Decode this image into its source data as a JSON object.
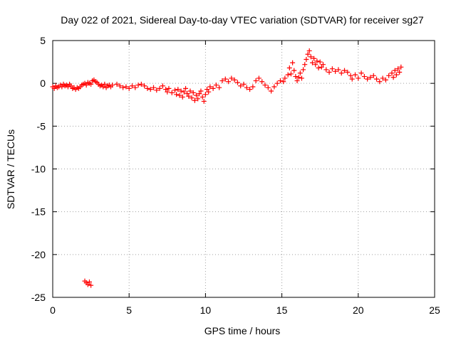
{
  "chart_data": {
    "type": "scatter",
    "title": "Day 022 of 2021, Sidereal Day-to-day VTEC variation (SDTVAR) for receiver sg27",
    "xlabel": "GPS time / hours",
    "ylabel": "SDTVAR / TECUs",
    "xlim": [
      0,
      25
    ],
    "ylim": [
      -25,
      5
    ],
    "grid": true,
    "marker": "+",
    "color": "#ff0000",
    "x_ticks": [
      0,
      5,
      10,
      15,
      20,
      25
    ],
    "x_tick_labels": [
      "0",
      "5",
      "10",
      "15",
      "20",
      "25"
    ],
    "y_ticks": [
      5,
      0,
      -5,
      -10,
      -15,
      -20,
      -25
    ],
    "y_tick_labels": [
      "5",
      "0",
      "-5",
      "-10",
      "-15",
      "-20",
      "-25"
    ],
    "series": [
      {
        "name": "sg27",
        "points": [
          [
            0.0,
            -0.4
          ],
          [
            0.1,
            -0.6
          ],
          [
            0.2,
            -0.3
          ],
          [
            0.3,
            -0.5
          ],
          [
            0.4,
            -0.4
          ],
          [
            0.5,
            -0.2
          ],
          [
            0.6,
            -0.4
          ],
          [
            0.7,
            -0.1
          ],
          [
            0.8,
            -0.3
          ],
          [
            0.9,
            -0.2
          ],
          [
            1.0,
            -0.4
          ],
          [
            1.1,
            -0.1
          ],
          [
            1.2,
            -0.3
          ],
          [
            1.3,
            -0.6
          ],
          [
            1.4,
            -0.5
          ],
          [
            1.5,
            -0.7
          ],
          [
            1.6,
            -0.5
          ],
          [
            1.7,
            -0.6
          ],
          [
            1.8,
            -0.4
          ],
          [
            1.9,
            -0.2
          ],
          [
            2.0,
            -0.1
          ],
          [
            2.1,
            0.0
          ],
          [
            2.2,
            -0.2
          ],
          [
            2.3,
            0.1
          ],
          [
            2.4,
            0.0
          ],
          [
            2.5,
            -0.1
          ],
          [
            2.6,
            0.3
          ],
          [
            2.7,
            0.4
          ],
          [
            2.8,
            0.2
          ],
          [
            2.9,
            0.1
          ],
          [
            3.0,
            -0.1
          ],
          [
            3.1,
            -0.3
          ],
          [
            3.2,
            -0.2
          ],
          [
            3.3,
            -0.4
          ],
          [
            3.4,
            -0.1
          ],
          [
            3.5,
            -0.5
          ],
          [
            3.6,
            -0.3
          ],
          [
            3.7,
            -0.2
          ],
          [
            3.8,
            -0.4
          ],
          [
            3.9,
            -0.2
          ],
          [
            4.2,
            -0.1
          ],
          [
            4.4,
            -0.3
          ],
          [
            4.6,
            -0.5
          ],
          [
            4.8,
            -0.4
          ],
          [
            5.0,
            -0.6
          ],
          [
            5.2,
            -0.3
          ],
          [
            5.4,
            -0.5
          ],
          [
            5.6,
            -0.2
          ],
          [
            5.8,
            -0.1
          ],
          [
            6.0,
            -0.3
          ],
          [
            6.2,
            -0.6
          ],
          [
            6.4,
            -0.7
          ],
          [
            6.6,
            -0.5
          ],
          [
            6.8,
            -0.8
          ],
          [
            7.0,
            -0.6
          ],
          [
            7.2,
            -0.3
          ],
          [
            7.4,
            -0.7
          ],
          [
            7.5,
            -1.0
          ],
          [
            7.6,
            -0.6
          ],
          [
            7.8,
            -1.1
          ],
          [
            8.0,
            -0.8
          ],
          [
            8.1,
            -1.3
          ],
          [
            8.2,
            -0.7
          ],
          [
            8.3,
            -1.4
          ],
          [
            8.4,
            -0.9
          ],
          [
            8.5,
            -1.6
          ],
          [
            8.6,
            -1.0
          ],
          [
            8.7,
            -0.6
          ],
          [
            8.8,
            -1.2
          ],
          [
            8.9,
            -1.5
          ],
          [
            9.0,
            -0.9
          ],
          [
            9.1,
            -1.7
          ],
          [
            9.2,
            -1.1
          ],
          [
            9.3,
            -2.0
          ],
          [
            9.4,
            -1.4
          ],
          [
            9.5,
            -1.8
          ],
          [
            9.6,
            -1.2
          ],
          [
            9.7,
            -0.9
          ],
          [
            9.8,
            -1.6
          ],
          [
            9.9,
            -2.1
          ],
          [
            10.0,
            -1.3
          ],
          [
            10.1,
            -0.7
          ],
          [
            10.2,
            -1.0
          ],
          [
            10.3,
            -0.4
          ],
          [
            10.5,
            -0.6
          ],
          [
            10.7,
            -0.2
          ],
          [
            10.9,
            -0.5
          ],
          [
            11.1,
            0.3
          ],
          [
            11.3,
            0.5
          ],
          [
            11.5,
            0.2
          ],
          [
            11.7,
            0.6
          ],
          [
            11.9,
            0.4
          ],
          [
            12.1,
            0.1
          ],
          [
            12.3,
            -0.3
          ],
          [
            12.5,
            -0.1
          ],
          [
            12.7,
            -0.5
          ],
          [
            12.9,
            -0.7
          ],
          [
            13.1,
            -0.4
          ],
          [
            13.3,
            0.3
          ],
          [
            13.5,
            0.6
          ],
          [
            13.7,
            0.2
          ],
          [
            13.9,
            -0.2
          ],
          [
            14.1,
            -0.5
          ],
          [
            14.3,
            -0.9
          ],
          [
            14.5,
            -0.4
          ],
          [
            14.7,
            0.0
          ],
          [
            14.9,
            0.3
          ],
          [
            15.1,
            0.2
          ],
          [
            15.2,
            0.6
          ],
          [
            15.4,
            1.0
          ],
          [
            15.5,
            1.8
          ],
          [
            15.6,
            1.1
          ],
          [
            15.7,
            2.4
          ],
          [
            15.8,
            1.5
          ],
          [
            15.9,
            0.8
          ],
          [
            16.0,
            0.3
          ],
          [
            16.1,
            0.7
          ],
          [
            16.2,
            1.2
          ],
          [
            16.3,
            0.6
          ],
          [
            16.4,
            1.6
          ],
          [
            16.5,
            2.2
          ],
          [
            16.6,
            2.8
          ],
          [
            16.7,
            3.4
          ],
          [
            16.8,
            3.8
          ],
          [
            16.9,
            3.1
          ],
          [
            17.0,
            2.4
          ],
          [
            17.1,
            2.9
          ],
          [
            17.2,
            2.2
          ],
          [
            17.3,
            2.6
          ],
          [
            17.4,
            1.8
          ],
          [
            17.5,
            2.5
          ],
          [
            17.6,
            1.9
          ],
          [
            17.7,
            2.2
          ],
          [
            17.9,
            1.6
          ],
          [
            18.1,
            1.3
          ],
          [
            18.3,
            1.7
          ],
          [
            18.5,
            1.4
          ],
          [
            18.7,
            1.6
          ],
          [
            18.9,
            1.2
          ],
          [
            19.1,
            1.5
          ],
          [
            19.3,
            1.3
          ],
          [
            19.5,
            0.9
          ],
          [
            19.6,
            0.5
          ],
          [
            19.8,
            1.0
          ],
          [
            20.0,
            0.6
          ],
          [
            20.2,
            1.2
          ],
          [
            20.4,
            0.8
          ],
          [
            20.6,
            0.5
          ],
          [
            20.8,
            0.7
          ],
          [
            21.0,
            0.9
          ],
          [
            21.2,
            0.5
          ],
          [
            21.4,
            0.2
          ],
          [
            21.6,
            0.6
          ],
          [
            21.8,
            0.4
          ],
          [
            22.0,
            0.9
          ],
          [
            22.2,
            1.2
          ],
          [
            22.3,
            0.7
          ],
          [
            22.4,
            1.5
          ],
          [
            22.5,
            1.0
          ],
          [
            22.6,
            1.7
          ],
          [
            22.7,
            1.3
          ],
          [
            22.8,
            1.9
          ],
          [
            2.1,
            -23.1
          ],
          [
            2.2,
            -23.3
          ],
          [
            2.3,
            -23.5
          ],
          [
            2.4,
            -23.2
          ],
          [
            2.5,
            -23.6
          ]
        ]
      }
    ]
  }
}
